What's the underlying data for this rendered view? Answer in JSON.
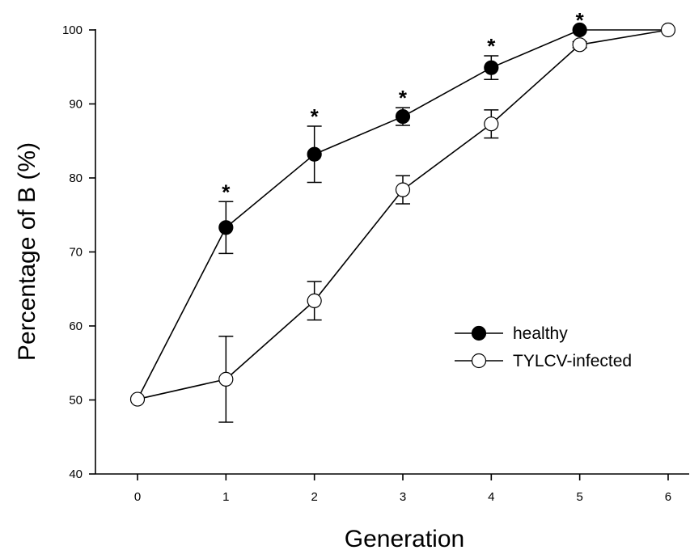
{
  "chart_data": {
    "type": "line",
    "title": "",
    "xlabel": "Generation",
    "ylabel": "Percentage of B (%)",
    "xlim": [
      -0.5,
      6.3
    ],
    "ylim": [
      40,
      100
    ],
    "xticks": [
      "0",
      "1",
      "2",
      "3",
      "4",
      "5",
      "6"
    ],
    "yticks": [
      "40",
      "50",
      "60",
      "70",
      "80",
      "90",
      "100"
    ],
    "grid": false,
    "legend_position": "center-right",
    "series": [
      {
        "name": "healthy",
        "marker": "filled-circle",
        "color": "#000000",
        "x": [
          0,
          1,
          2,
          3,
          4,
          5,
          6
        ],
        "y": [
          50.1,
          73.3,
          83.2,
          88.3,
          94.9,
          100.0,
          100.0
        ],
        "err": [
          0,
          3.5,
          3.8,
          1.2,
          1.6,
          0,
          0
        ]
      },
      {
        "name": "TYLCV-infected",
        "marker": "open-circle",
        "color": "#000000",
        "x": [
          0,
          1,
          2,
          3,
          4,
          5,
          6
        ],
        "y": [
          50.1,
          52.8,
          63.4,
          78.4,
          87.3,
          98.0,
          100.0
        ],
        "err": [
          0,
          5.8,
          2.6,
          1.9,
          1.9,
          0.4,
          0
        ]
      }
    ],
    "significance_marks": {
      "symbol": "*",
      "x": [
        1,
        2,
        3,
        4,
        5
      ]
    }
  }
}
